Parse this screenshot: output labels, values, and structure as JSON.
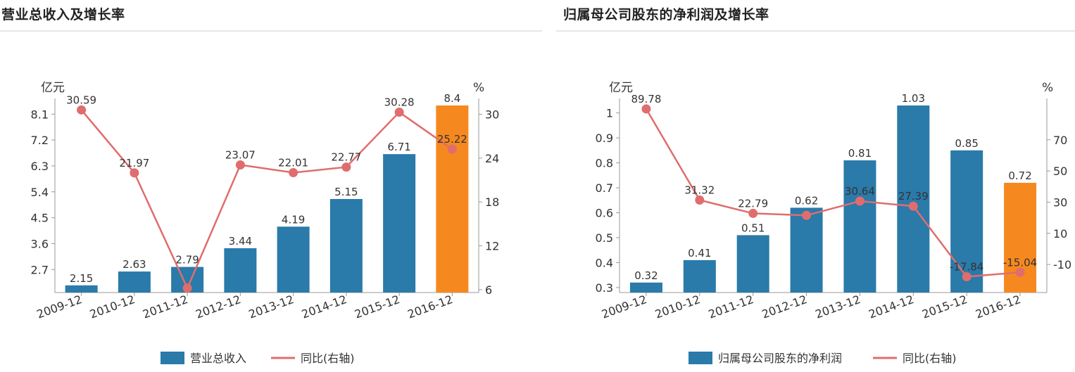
{
  "chart_data": [
    {
      "type": "bar",
      "title": "营业总收入及增长率",
      "ylabel": "亿元",
      "y2label": "%",
      "categories": [
        "2009-12",
        "2010-12",
        "2011-12",
        "2012-12",
        "2013-12",
        "2014-12",
        "2015-12",
        "2016-12"
      ],
      "y_ticks": [
        "2.7",
        "3.6",
        "4.5",
        "5.4",
        "6.3",
        "7.2",
        "8.1"
      ],
      "y2_ticks": [
        "6",
        "12",
        "18",
        "24",
        "30"
      ],
      "ylim": [
        1.9,
        8.4
      ],
      "y2lim": [
        5.6,
        31.2
      ],
      "series": [
        {
          "name": "营业总收入",
          "kind": "bar",
          "values": [
            2.15,
            2.63,
            2.79,
            3.44,
            4.19,
            5.15,
            6.71,
            8.4
          ],
          "labels": [
            "2.15",
            "2.63",
            "2.79",
            "3.44",
            "4.19",
            "5.15",
            "6.71",
            "8.4"
          ],
          "color": "#2a7aaa",
          "highlight_color": "#f5891f"
        },
        {
          "name": "同比(右轴)",
          "kind": "line",
          "axis": "right",
          "values": [
            30.59,
            21.97,
            6.2,
            23.07,
            22.01,
            22.77,
            30.28,
            25.22
          ],
          "labels": [
            "30.59",
            "21.97",
            "",
            "23.07",
            "22.01",
            "22.77",
            "30.28",
            "25.22"
          ],
          "color": "#e06d6d"
        }
      ],
      "legend": [
        "营业总收入",
        "同比(右轴)"
      ]
    },
    {
      "type": "bar",
      "title": "归属母公司股东的净利润及增长率",
      "ylabel": "亿元",
      "y2label": "%",
      "categories": [
        "2009-12",
        "2010-12",
        "2011-12",
        "2012-12",
        "2013-12",
        "2014-12",
        "2015-12",
        "2016-12"
      ],
      "y_ticks": [
        "0.3",
        "0.4",
        "0.5",
        "0.6",
        "0.7",
        "0.8",
        "0.9",
        "1"
      ],
      "y2_ticks": [
        "-10",
        "10",
        "30",
        "50",
        "70"
      ],
      "ylim": [
        0.28,
        1.03
      ],
      "y2lim": [
        -28.0,
        92.0
      ],
      "series": [
        {
          "name": "归属母公司股东的净利润",
          "kind": "bar",
          "values": [
            0.32,
            0.41,
            0.51,
            0.62,
            0.81,
            1.03,
            0.85,
            0.72
          ],
          "labels": [
            "0.32",
            "0.41",
            "0.51",
            "0.62",
            "0.81",
            "1.03",
            "0.85",
            "0.72"
          ],
          "color": "#2a7aaa",
          "highlight_color": "#f5891f"
        },
        {
          "name": "同比(右轴)",
          "kind": "line",
          "axis": "right",
          "values": [
            89.78,
            31.32,
            22.79,
            21.5,
            30.64,
            27.39,
            -17.84,
            -15.04
          ],
          "labels": [
            "89.78",
            "31.32",
            "22.79",
            "",
            "30.64",
            "27.39",
            "-17.84",
            "-15.04"
          ],
          "color": "#e06d6d"
        }
      ],
      "legend": [
        "归属母公司股东的净利润",
        "同比(右轴)"
      ]
    }
  ]
}
